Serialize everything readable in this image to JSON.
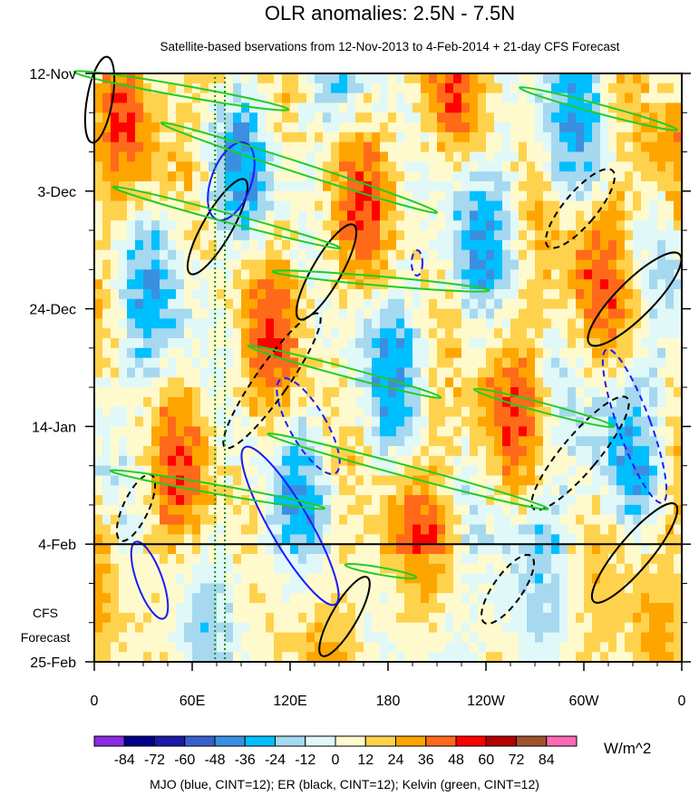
{
  "chart_data": {
    "type": "heatmap",
    "title": "OLR anomalies: 2.5N - 7.5N",
    "subtitle": "Satellite-based bservations from 12-Nov-2013 to 4-Feb-2014 + 21-day CFS Forecast",
    "x_ticks": [
      {
        "label": "0",
        "lon": 0
      },
      {
        "label": "60E",
        "lon": 60
      },
      {
        "label": "120E",
        "lon": 120
      },
      {
        "label": "180",
        "lon": 180
      },
      {
        "label": "120W",
        "lon": 240
      },
      {
        "label": "60W",
        "lon": 300
      },
      {
        "label": "0",
        "lon": 360
      }
    ],
    "y_ticks": [
      {
        "label": "12-Nov",
        "day": 0
      },
      {
        "label": "3-Dec",
        "day": 21
      },
      {
        "label": "24-Dec",
        "day": 42
      },
      {
        "label": "14-Jan",
        "day": 63
      },
      {
        "label": "4-Feb",
        "day": 84
      },
      {
        "label": "25-Feb",
        "day": 105
      }
    ],
    "xlim": [
      0,
      360
    ],
    "ylim_days": [
      0,
      105
    ],
    "forecast_start": "4-Feb",
    "forecast_label": [
      "CFS",
      "Forecast"
    ],
    "colorbar": {
      "levels": [
        "-84",
        "-72",
        "-60",
        "-48",
        "-36",
        "-24",
        "-12",
        "0",
        "12",
        "24",
        "36",
        "48",
        "60",
        "72",
        "84"
      ],
      "colors": [
        "#8a2be2",
        "#00008b",
        "#1a1aa8",
        "#3a5fcd",
        "#3b8fe0",
        "#00bfff",
        "#a6d8f0",
        "#e0f8f8",
        "#fffacd",
        "#ffd24d",
        "#ffa500",
        "#ff6a1a",
        "#ff0000",
        "#b30000",
        "#a0522d",
        "#ff69b4"
      ],
      "units": "W/m^2"
    },
    "footer": "MJO (blue, CINT=12); ER (black, CINT=12); Kelvin (green, CINT=12)"
  }
}
